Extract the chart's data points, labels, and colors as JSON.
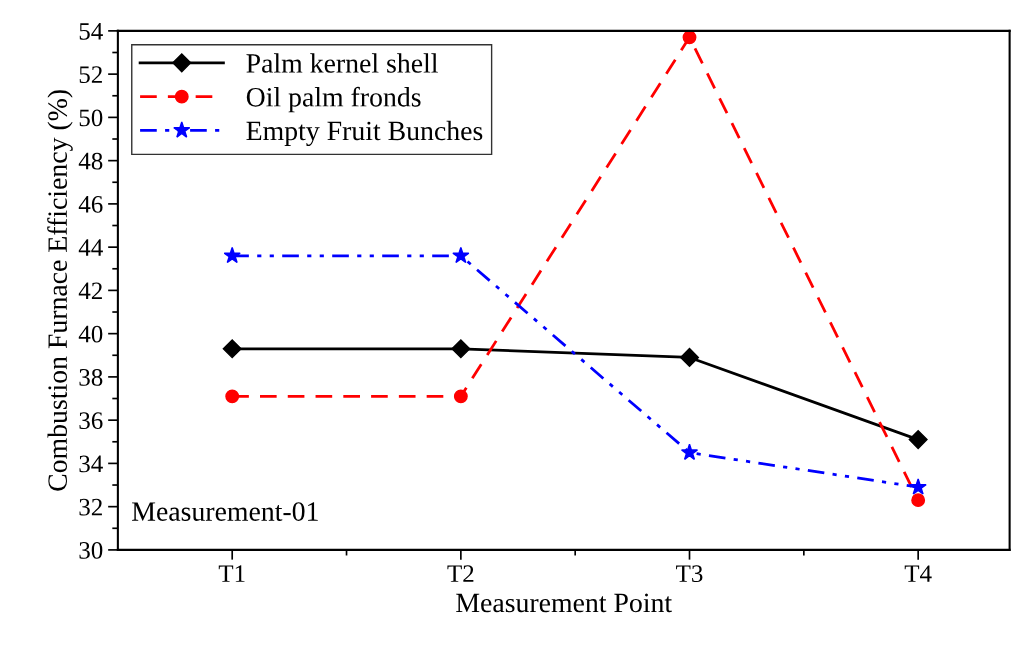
{
  "chart_data": {
    "type": "line",
    "xlabel": "Measurement Point",
    "ylabel": "Combustion Furnace Efficiency (%)",
    "categories": [
      "T1",
      "T2",
      "T3",
      "T4"
    ],
    "series": [
      {
        "name": "Palm kernel shell",
        "color": "#000000",
        "marker": "diamond",
        "line_style": "solid",
        "values": [
          39.3,
          39.3,
          38.9,
          35.1
        ]
      },
      {
        "name": "Oil palm fronds",
        "color": "#ff0000",
        "marker": "circle",
        "line_style": "dashed",
        "values": [
          37.1,
          37.1,
          53.7,
          32.3
        ]
      },
      {
        "name": "Empty Fruit Bunches",
        "color": "#0000ff",
        "marker": "star",
        "line_style": "dashdotdot",
        "values": [
          43.6,
          43.6,
          34.5,
          32.9
        ]
      }
    ],
    "ylim": [
      30,
      54
    ],
    "yticks": [
      30,
      32,
      34,
      36,
      38,
      40,
      42,
      44,
      46,
      48,
      50,
      52,
      54
    ],
    "legend": "top left",
    "grid": false,
    "annotations": [
      "Measurement-01"
    ]
  }
}
